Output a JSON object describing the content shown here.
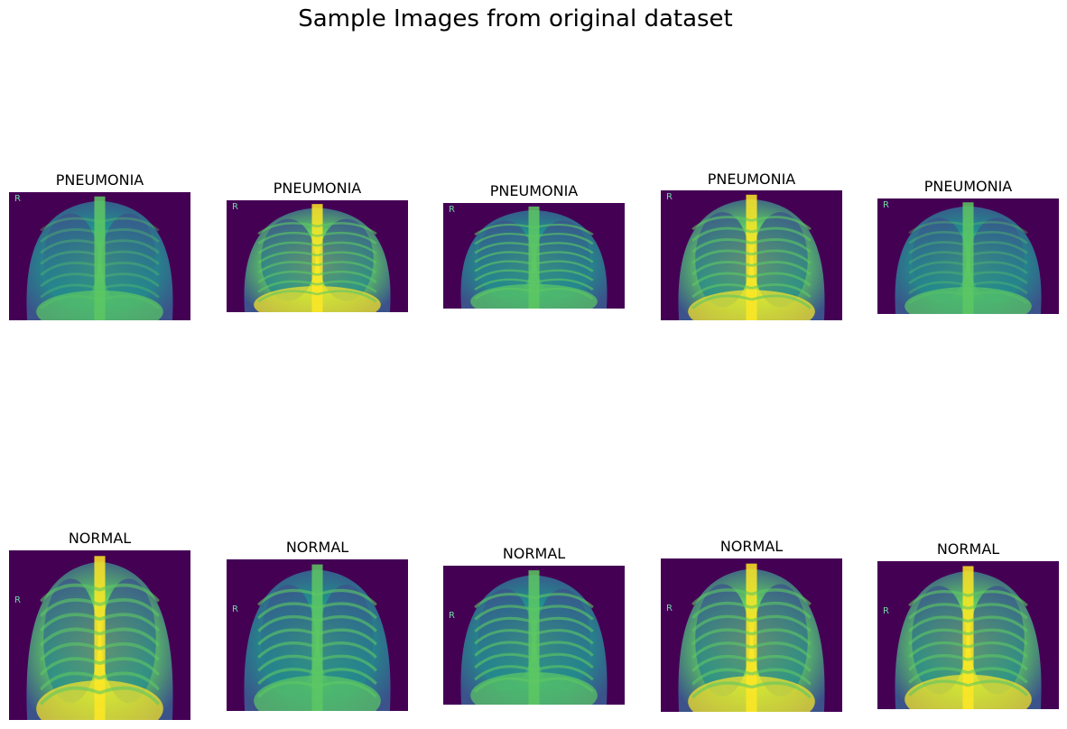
{
  "suptitle": "Sample Images from original dataset",
  "rows": [
    {
      "label": "PNEUMONIA",
      "images": [
        {
          "title": "PNEUMONIA",
          "marker": "R",
          "tone": "dim"
        },
        {
          "title": "PNEUMONIA",
          "marker": "R",
          "tone": "bright"
        },
        {
          "title": "PNEUMONIA",
          "marker": "R",
          "tone": "mid"
        },
        {
          "title": "PNEUMONIA",
          "marker": "R",
          "tone": "bright"
        },
        {
          "title": "PNEUMONIA",
          "marker": "R",
          "tone": "dim"
        }
      ]
    },
    {
      "label": "NORMAL",
      "images": [
        {
          "title": "NORMAL",
          "marker": "R",
          "tone": "bright"
        },
        {
          "title": "NORMAL",
          "marker": "R",
          "tone": "mid"
        },
        {
          "title": "NORMAL",
          "marker": "R",
          "tone": "mid"
        },
        {
          "title": "NORMAL",
          "marker": "R",
          "tone": "bright"
        },
        {
          "title": "NORMAL",
          "marker": "R",
          "tone": "bright"
        }
      ]
    }
  ],
  "colormap": {
    "dark": "#440154",
    "deep": "#3b528b",
    "teal": "#21908d",
    "green": "#5dc863",
    "yellow": "#fde725"
  }
}
